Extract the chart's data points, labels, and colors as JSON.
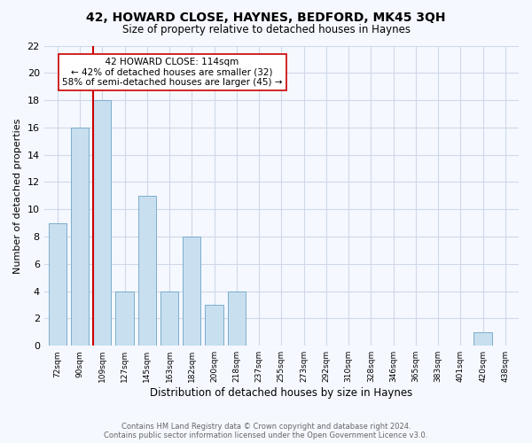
{
  "title": "42, HOWARD CLOSE, HAYNES, BEDFORD, MK45 3QH",
  "subtitle": "Size of property relative to detached houses in Haynes",
  "xlabel": "Distribution of detached houses by size in Haynes",
  "ylabel": "Number of detached properties",
  "bin_labels": [
    "72sqm",
    "90sqm",
    "109sqm",
    "127sqm",
    "145sqm",
    "163sqm",
    "182sqm",
    "200sqm",
    "218sqm",
    "237sqm",
    "255sqm",
    "273sqm",
    "292sqm",
    "310sqm",
    "328sqm",
    "346sqm",
    "365sqm",
    "383sqm",
    "401sqm",
    "420sqm",
    "438sqm"
  ],
  "bar_values": [
    9,
    16,
    18,
    4,
    11,
    4,
    8,
    3,
    4,
    0,
    0,
    0,
    0,
    0,
    0,
    0,
    0,
    0,
    0,
    1,
    0
  ],
  "bar_color": "#c8dff0",
  "bar_edge_color": "#7aaecb",
  "highlight_line_color": "#cc0000",
  "ylim": [
    0,
    22
  ],
  "yticks": [
    0,
    2,
    4,
    6,
    8,
    10,
    12,
    14,
    16,
    18,
    20,
    22
  ],
  "annotation_title": "42 HOWARD CLOSE: 114sqm",
  "annotation_line1": "← 42% of detached houses are smaller (32)",
  "annotation_line2": "58% of semi-detached houses are larger (45) →",
  "annotation_box_color": "#ffffff",
  "annotation_box_edge": "#cc0000",
  "footer_line1": "Contains HM Land Registry data © Crown copyright and database right 2024.",
  "footer_line2": "Contains public sector information licensed under the Open Government Licence v3.0.",
  "background_color": "#f5f8ff",
  "grid_color": "#d0d8e8"
}
